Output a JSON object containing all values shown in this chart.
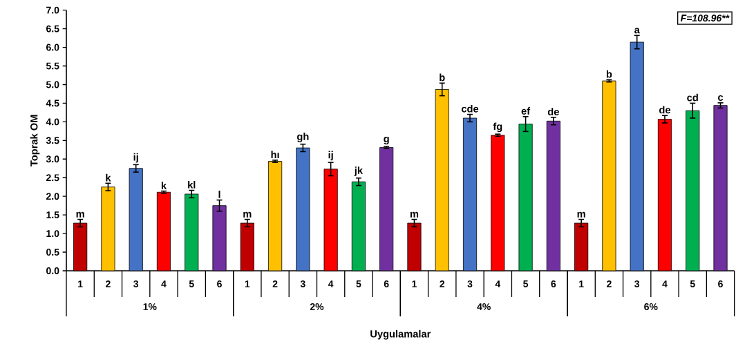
{
  "chart_data": {
    "type": "bar",
    "xlabel": "Uygulamalar",
    "ylabel": "Toprak OM",
    "annotations": [
      "F=108.96**"
    ],
    "categories": [
      "1%",
      "2%",
      "4%",
      "6%"
    ],
    "ylim": [
      0,
      7
    ],
    "yticks": [
      {
        "value": 0,
        "label": "0.0"
      },
      {
        "value": 0.5,
        "label": "0.5"
      },
      {
        "value": 1,
        "label": "1.0"
      },
      {
        "value": 1.5,
        "label": "1.5"
      },
      {
        "value": 2,
        "label": "2.0"
      },
      {
        "value": 2.5,
        "label": "2.5"
      },
      {
        "value": 3,
        "label": "3.0"
      },
      {
        "value": 3.5,
        "label": "3.5"
      },
      {
        "value": 4,
        "label": "4.0"
      },
      {
        "value": 4.5,
        "label": "4.5"
      },
      {
        "value": 5,
        "label": "5.0"
      },
      {
        "value": 5.5,
        "label": "5.5"
      },
      {
        "value": 6,
        "label": "6.0"
      },
      {
        "value": 6.5,
        "label": "6.5"
      },
      {
        "value": 7,
        "label": "7.0"
      }
    ],
    "series": [
      {
        "name": "1",
        "color": "#c00000",
        "values": [
          1.28,
          1.28,
          1.28,
          1.28
        ],
        "errors": [
          0.1,
          0.1,
          0.1,
          0.1
        ],
        "value_labels": [
          "m",
          "m",
          "m",
          "m"
        ]
      },
      {
        "name": "2",
        "color": "#ffc000",
        "values": [
          2.25,
          2.94,
          4.87,
          5.1
        ],
        "errors": [
          0.1,
          0.03,
          0.17,
          0.03
        ],
        "value_labels": [
          "k",
          "hı",
          "b",
          "b"
        ]
      },
      {
        "name": "3",
        "color": "#4472c4",
        "values": [
          2.75,
          3.3,
          4.1,
          6.14
        ],
        "errors": [
          0.1,
          0.1,
          0.1,
          0.18
        ],
        "value_labels": [
          "ij",
          "gh",
          "cde",
          "a"
        ]
      },
      {
        "name": "4",
        "color": "#ff0000",
        "values": [
          2.11,
          2.73,
          3.64,
          4.07
        ],
        "errors": [
          0.03,
          0.18,
          0.03,
          0.1
        ],
        "value_labels": [
          "k",
          "ij",
          "fg",
          "de"
        ]
      },
      {
        "name": "5",
        "color": "#00b050",
        "values": [
          2.06,
          2.39,
          3.94,
          4.3
        ],
        "errors": [
          0.1,
          0.1,
          0.2,
          0.2
        ],
        "value_labels": [
          "kl",
          "jk",
          "ef",
          "cd"
        ]
      },
      {
        "name": "6",
        "color": "#7030a0",
        "values": [
          1.75,
          3.31,
          4.02,
          4.44
        ],
        "errors": [
          0.15,
          0.03,
          0.1,
          0.07
        ],
        "value_labels": [
          "l",
          "g",
          "de",
          "c"
        ]
      }
    ]
  }
}
